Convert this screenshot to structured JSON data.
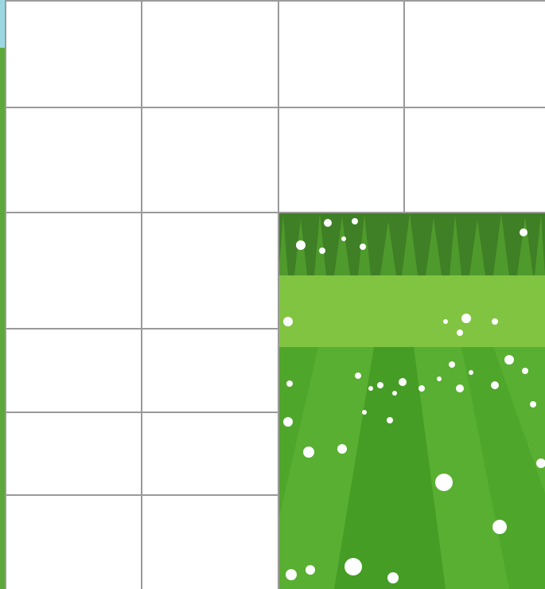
{
  "game": {
    "board": {
      "columns": 4,
      "rows": 6,
      "revealed_region": "bottom-right",
      "tile_color": "#ffffff",
      "grid_color": "#9a9a9a"
    },
    "scene": {
      "description_colors": {
        "sky_top": "#7fd3e6",
        "grass_dark": "#3f8f2a",
        "grass_mid": "#5aa82f",
        "grass_light": "#8ccc45",
        "flower": "#ffffff"
      }
    }
  }
}
